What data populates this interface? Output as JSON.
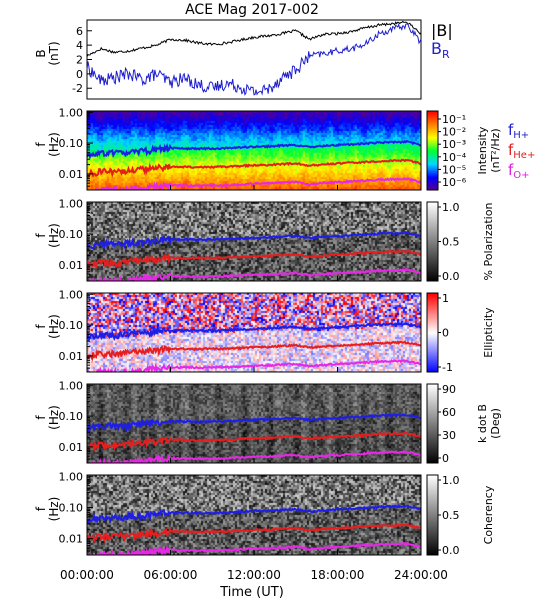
{
  "title": "ACE Mag 2017-002",
  "x_axis": {
    "label": "Time (UT)",
    "ticks": [
      "00:00:00",
      "06:00:00",
      "12:00:00",
      "18:00:00",
      "24:00:00"
    ],
    "range_hours": [
      0,
      24
    ]
  },
  "legends": {
    "field": [
      {
        "text": "|B|",
        "color": "#000000"
      },
      {
        "text": "B",
        "sub": "R",
        "color": "#2222cc"
      }
    ],
    "gyro": [
      {
        "text": "f",
        "sub": "H+",
        "color": "#2222cc"
      },
      {
        "text": "f",
        "sub": "He+",
        "color": "#dd2222"
      },
      {
        "text": "f",
        "sub": "O+",
        "color": "#dd22dd"
      }
    ]
  },
  "colors": {
    "b_total": "#000000",
    "b_r": "#1e1ed2",
    "f_hplus": "#1e1ee6",
    "f_heplus": "#e61e1e",
    "f_oplus": "#e628e6"
  },
  "panels": [
    {
      "id": "b-field",
      "ylabel": "B",
      "yunit": "(nT)",
      "yticks": [
        "6",
        "4",
        "2",
        "0",
        "-2"
      ]
    },
    {
      "id": "intensity",
      "ylabel": "f",
      "yunit": "(Hz)",
      "yticks": [
        "1.00",
        "0.10",
        "0.01"
      ],
      "colorbar": {
        "title": "Intensity",
        "unit": "(nT²/Hz)",
        "ticks": [
          "10⁻¹",
          "10⁻²",
          "10⁻³",
          "10⁻⁴",
          "10⁻⁵",
          "10⁻⁶"
        ],
        "scale": "rainbow"
      }
    },
    {
      "id": "polarization",
      "ylabel": "f",
      "yunit": "(Hz)",
      "yticks": [
        "1.00",
        "0.10",
        "0.01"
      ],
      "colorbar": {
        "title": "% Polarization",
        "unit": "",
        "ticks": [
          "1.0",
          "0.5",
          "0.0"
        ],
        "scale": "gray"
      }
    },
    {
      "id": "ellipticity",
      "ylabel": "f",
      "yunit": "(Hz)",
      "yticks": [
        "1.00",
        "0.10",
        "0.01"
      ],
      "colorbar": {
        "title": "Ellipticity",
        "unit": "",
        "ticks": [
          "1",
          "0",
          "-1"
        ],
        "scale": "bwr"
      }
    },
    {
      "id": "k-dot-b",
      "ylabel": "f",
      "yunit": "(Hz)",
      "yticks": [
        "1.00",
        "0.10",
        "0.01"
      ],
      "colorbar": {
        "title": "k dot B",
        "unit": "(Deg)",
        "ticks": [
          "90",
          "60",
          "30",
          "0"
        ],
        "scale": "gray"
      }
    },
    {
      "id": "coherency",
      "ylabel": "f",
      "yunit": "(Hz)",
      "yticks": [
        "1.00",
        "0.10",
        "0.01"
      ],
      "colorbar": {
        "title": "Coherency",
        "unit": "",
        "ticks": [
          "1.0",
          "0.5",
          "0.0"
        ],
        "scale": "gray"
      }
    }
  ],
  "chart_data": {
    "type": "line",
    "title": "ACE Mag 2017-002",
    "xlabel": "Time (UT)",
    "x_hours": [
      0,
      1,
      2,
      3,
      4,
      5,
      6,
      7,
      8,
      9,
      10,
      11,
      12,
      13,
      14,
      15,
      16,
      17,
      18,
      19,
      20,
      21,
      22,
      23,
      24
    ],
    "b_field": {
      "ylabel": "B (nT)",
      "ylim": [
        -3.5,
        7.5
      ],
      "series": [
        {
          "name": "|B|",
          "values": [
            2.5,
            3.5,
            3.0,
            3.2,
            3.6,
            4.0,
            4.8,
            4.7,
            4.3,
            4.1,
            4.3,
            4.7,
            5.1,
            5.3,
            5.6,
            6.0,
            4.8,
            5.5,
            5.6,
            5.9,
            6.4,
            6.8,
            7.0,
            7.2,
            5.6
          ]
        },
        {
          "name": "B",
          "sub": "R",
          "values": [
            1.0,
            -1.0,
            -0.5,
            0.0,
            -0.8,
            0.0,
            -1.2,
            -0.6,
            -1.5,
            -2.0,
            -1.3,
            -1.8,
            -2.5,
            -2.2,
            -0.5,
            0.5,
            2.5,
            2.8,
            3.2,
            3.5,
            4.1,
            5.6,
            6.2,
            6.8,
            4.4
          ]
        }
      ]
    },
    "gyro_frequencies_hz": {
      "ylim": [
        0.003,
        1.1
      ],
      "yscale": "log",
      "series": [
        {
          "name": "H+",
          "values": [
            0.038,
            0.048,
            0.047,
            0.05,
            0.055,
            0.062,
            0.068,
            0.067,
            0.066,
            0.067,
            0.068,
            0.072,
            0.076,
            0.078,
            0.083,
            0.087,
            0.074,
            0.081,
            0.086,
            0.091,
            0.097,
            0.104,
            0.107,
            0.11,
            0.085
          ]
        },
        {
          "name": "He+",
          "values": [
            0.0095,
            0.012,
            0.0118,
            0.0125,
            0.0138,
            0.0155,
            0.017,
            0.0168,
            0.0165,
            0.0168,
            0.017,
            0.018,
            0.019,
            0.0195,
            0.0208,
            0.0218,
            0.0185,
            0.0203,
            0.0215,
            0.0228,
            0.0243,
            0.026,
            0.0268,
            0.0275,
            0.0213
          ]
        },
        {
          "name": "O+",
          "values": [
            0.0024,
            0.003,
            0.00295,
            0.0031,
            0.0034,
            0.0039,
            0.0043,
            0.0042,
            0.0041,
            0.0042,
            0.0043,
            0.0045,
            0.0048,
            0.0049,
            0.0052,
            0.0055,
            0.0046,
            0.0051,
            0.0054,
            0.0057,
            0.0061,
            0.0065,
            0.0067,
            0.0069,
            0.0053
          ]
        }
      ]
    }
  }
}
